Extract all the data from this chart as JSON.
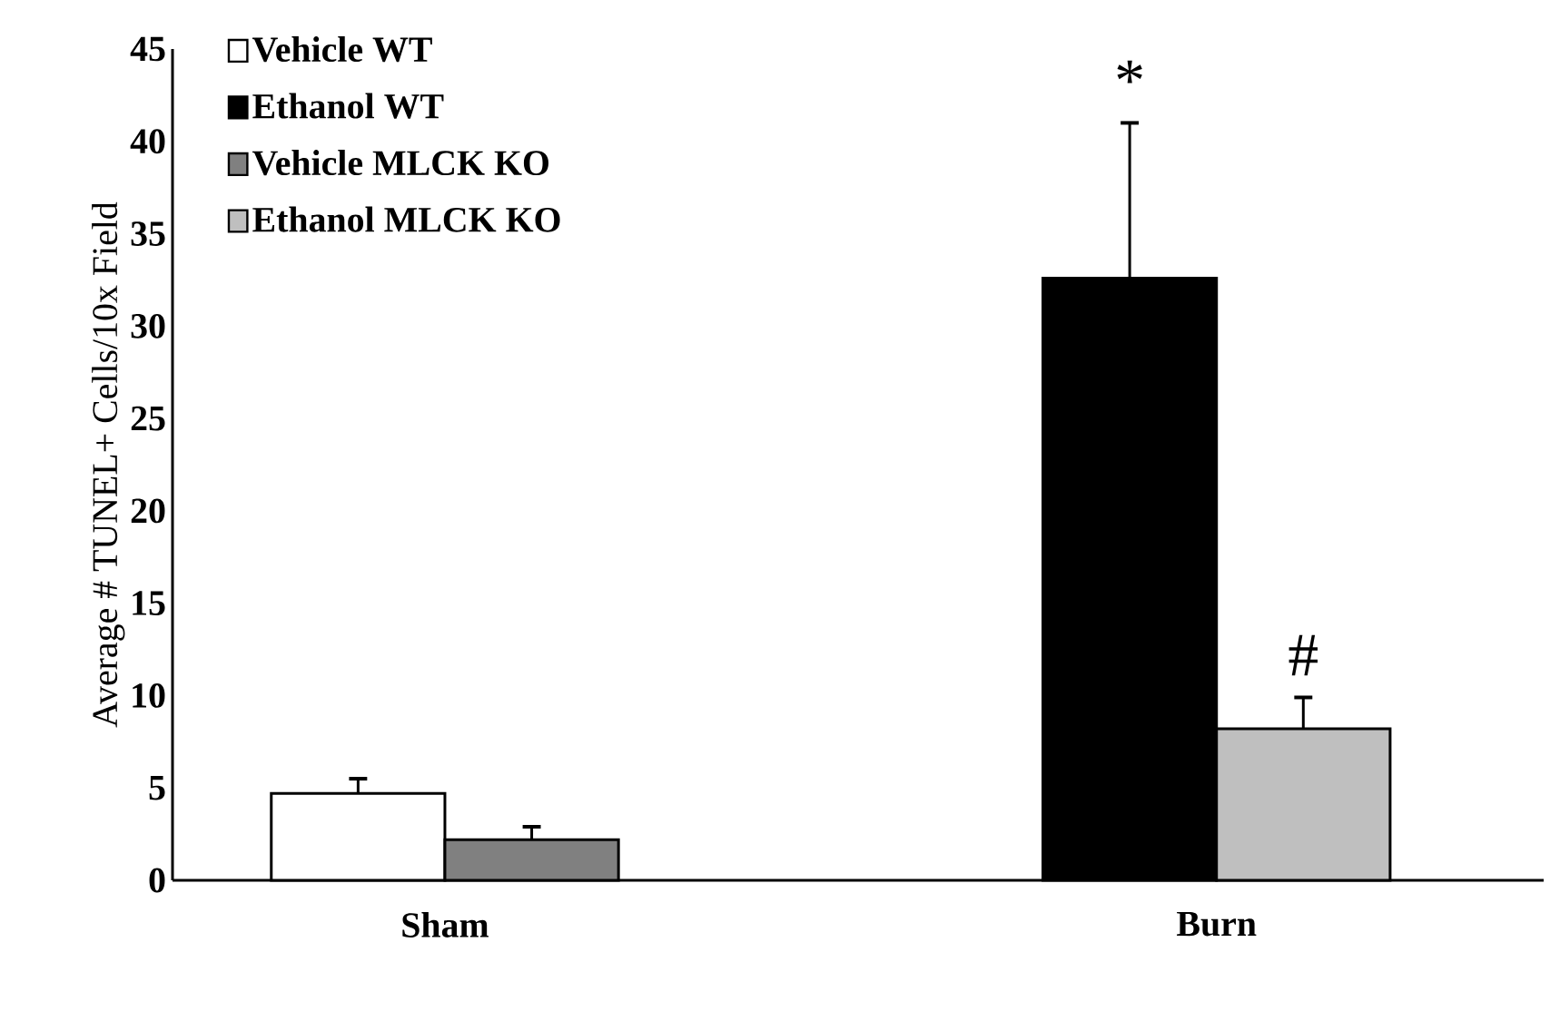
{
  "chart_data": {
    "type": "bar",
    "ylabel": "Average # TUNEL+ Cells/10x Field",
    "categories": [
      "Sham",
      "Burn"
    ],
    "series": [
      {
        "name": "Vehicle WT",
        "color": "#ffffff",
        "values": [
          4.7,
          null
        ],
        "errors": [
          0.8,
          null
        ]
      },
      {
        "name": "Ethanol WT",
        "color": "#000000",
        "values": [
          null,
          32.6
        ],
        "errors": [
          null,
          8.4
        ]
      },
      {
        "name": "Vehicle MLCK KO",
        "color": "#808080",
        "values": [
          2.2,
          null
        ],
        "errors": [
          0.7,
          null
        ]
      },
      {
        "name": "Ethanol MLCK KO",
        "color": "#bfbfbf",
        "values": [
          null,
          8.2
        ],
        "errors": [
          null,
          1.7
        ]
      }
    ],
    "ylim": [
      0,
      45
    ],
    "yticks": [
      0,
      5,
      10,
      15,
      20,
      25,
      30,
      35,
      40,
      45
    ],
    "grid": false,
    "legend": "top left",
    "annotations": [
      "*",
      "#"
    ]
  }
}
